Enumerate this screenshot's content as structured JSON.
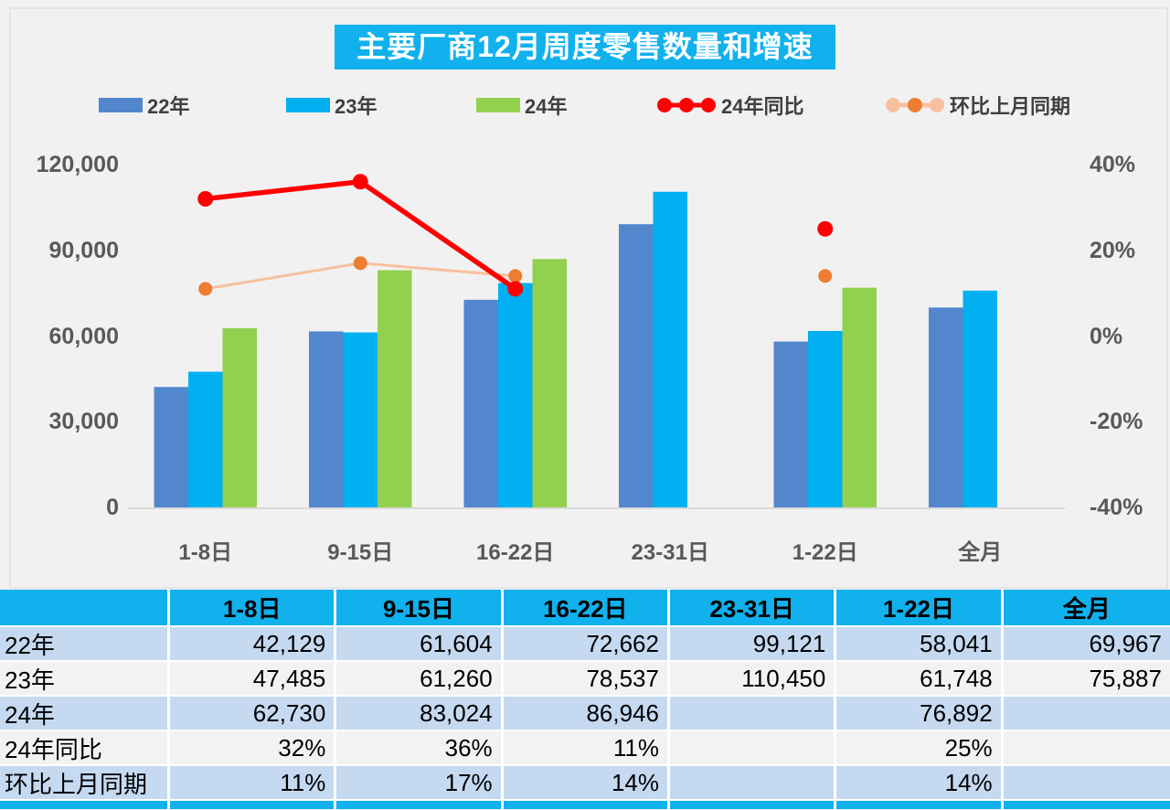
{
  "title": "主要厂商12月周度零售数量和增速",
  "colors": {
    "accent_cyan": "#10B1EC",
    "bar_22": "#5287CE",
    "bar_23": "#00B0F0",
    "bar_24": "#92D050",
    "yoy_red": "#FE0000",
    "mom_marker_orange": "#ED7D31",
    "mom_line_peach": "#F8C09E",
    "table_row_blue": "#C5D9F1",
    "table_row_gray": "#F2F2F2",
    "axis_text": "#595959",
    "baseline": "#D9D9D9"
  },
  "legend": [
    {
      "label": "22年",
      "type": "bar",
      "color": "#5287CE"
    },
    {
      "label": "23年",
      "type": "bar",
      "color": "#00B0F0"
    },
    {
      "label": "24年",
      "type": "bar",
      "color": "#92D050"
    },
    {
      "label": "24年同比",
      "type": "line",
      "marker": "#FE0000",
      "stroke": "#FE0000"
    },
    {
      "label": "环比上月同期",
      "type": "line",
      "marker": "#ED7D31",
      "stroke": "#F8C09E"
    }
  ],
  "chart_data": {
    "type": "combo-grouped-bar-and-line",
    "title": "主要厂商12月周度零售数量和增速",
    "categories": [
      "1-8日",
      "9-15日",
      "16-22日",
      "23-31日",
      "1-22日",
      "全月"
    ],
    "bar_series": [
      {
        "name": "22年",
        "color": "#5287CE",
        "axis": "left",
        "values": [
          42129,
          61604,
          72662,
          99121,
          58041,
          69967
        ]
      },
      {
        "name": "23年",
        "color": "#00B0F0",
        "axis": "left",
        "values": [
          47485,
          61260,
          78537,
          110450,
          61748,
          75887
        ]
      },
      {
        "name": "24年",
        "color": "#92D050",
        "axis": "left",
        "values": [
          62730,
          83024,
          86946,
          null,
          76892,
          null
        ]
      }
    ],
    "line_series": [
      {
        "name": "环比上月同期",
        "axis": "right",
        "marker_color": "#ED7D31",
        "stroke_color": "#F8C09E",
        "stroke_width": 3,
        "marker_r": 7.5,
        "values_pct": [
          11,
          17,
          14,
          null,
          14,
          null
        ]
      },
      {
        "name": "24年同比",
        "axis": "right",
        "marker_color": "#FE0000",
        "stroke_color": "#FE0000",
        "stroke_width": 5.5,
        "marker_r": 8.5,
        "values_pct": [
          32,
          36,
          11,
          null,
          25,
          null
        ]
      }
    ],
    "left_axis": {
      "min": 0,
      "max": 120000,
      "ticks": [
        0,
        30000,
        60000,
        90000,
        120000
      ],
      "tick_labels": [
        "0",
        "30,000",
        "60,000",
        "90,000",
        "120,000"
      ]
    },
    "right_axis": {
      "min": -40,
      "max": 40,
      "ticks": [
        -40,
        -20,
        0,
        20,
        40
      ],
      "tick_labels": [
        "-40%",
        "-20%",
        "0%",
        "20%",
        "40%"
      ]
    },
    "grid": false,
    "legend_position": "top"
  },
  "table": {
    "header": [
      "",
      "1-8日",
      "9-15日",
      "16-22日",
      "23-31日",
      "1-22日",
      "全月"
    ],
    "rows": [
      {
        "label": "22年",
        "values": [
          "42,129",
          "61,604",
          "72,662",
          "99,121",
          "58,041",
          "69,967"
        ]
      },
      {
        "label": "23年",
        "values": [
          "47,485",
          "61,260",
          "78,537",
          "110,450",
          "61,748",
          "75,887"
        ]
      },
      {
        "label": "24年",
        "values": [
          "62,730",
          "83,024",
          "86,946",
          "",
          "76,892",
          ""
        ]
      },
      {
        "label": "24年同比",
        "values": [
          "32%",
          "36%",
          "11%",
          "",
          "25%",
          ""
        ]
      },
      {
        "label": "环比上月同期",
        "values": [
          "11%",
          "17%",
          "14%",
          "",
          "14%",
          ""
        ]
      }
    ]
  }
}
